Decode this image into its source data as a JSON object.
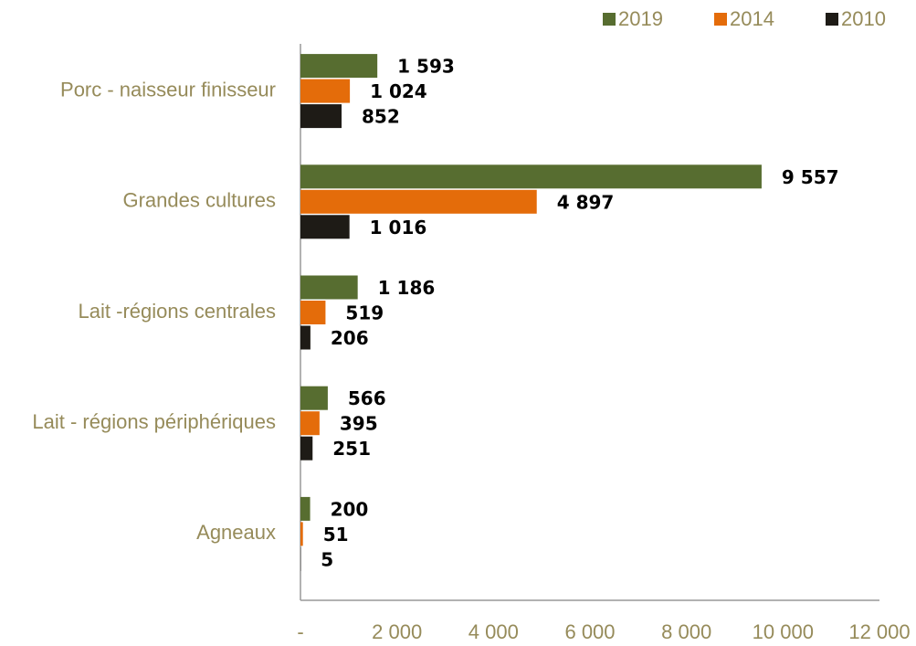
{
  "chart_data": {
    "type": "barh",
    "categories": [
      "Porc - naisseur finisseur",
      "Grandes cultures",
      "Lait -régions centrales",
      "Lait - régions périphériques",
      "Agneaux"
    ],
    "series": [
      {
        "name": "2019",
        "color": "#576d30",
        "values": [
          1593,
          9557,
          1186,
          566,
          200
        ],
        "value_labels": [
          "1 593",
          "9 557",
          "1 186",
          "566",
          "200"
        ]
      },
      {
        "name": "2014",
        "color": "#e46c0a",
        "values": [
          1024,
          4897,
          519,
          395,
          51
        ],
        "value_labels": [
          "1 024",
          "4 897",
          "519",
          "395",
          "51"
        ]
      },
      {
        "name": "2010",
        "color": "#1e1b16",
        "values": [
          852,
          1016,
          206,
          251,
          5
        ],
        "value_labels": [
          "852",
          "1 016",
          "206",
          "251",
          "5"
        ]
      }
    ],
    "xlim": [
      0,
      12000
    ],
    "xticks": [
      {
        "value": 0,
        "label": "-"
      },
      {
        "value": 2000,
        "label": "2 000"
      },
      {
        "value": 4000,
        "label": "4 000"
      },
      {
        "value": 6000,
        "label": "6 000"
      },
      {
        "value": 8000,
        "label": "8 000"
      },
      {
        "value": 10000,
        "label": "10 000"
      },
      {
        "value": 12000,
        "label": "12 000"
      }
    ],
    "legend": "top-right",
    "grid": false
  }
}
